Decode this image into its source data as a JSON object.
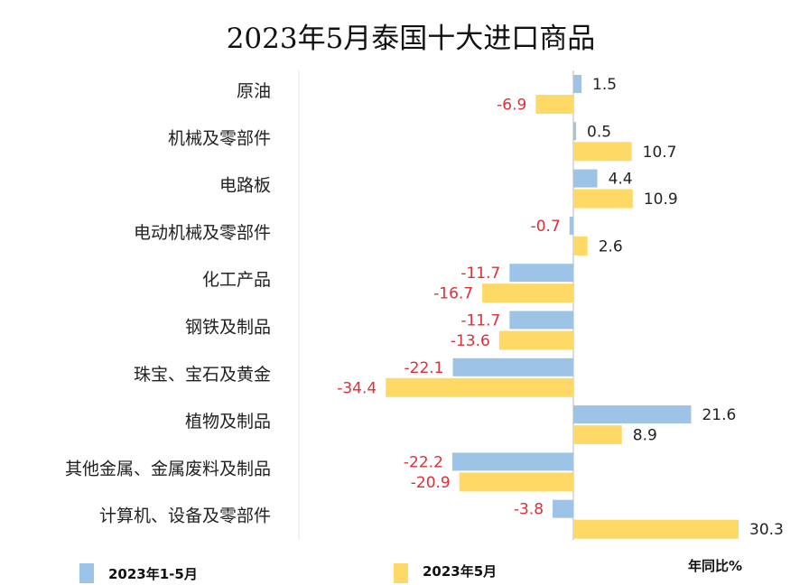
{
  "chart_data": {
    "type": "bar",
    "orientation": "horizontal",
    "title": "2023年5月泰国十大进口商品",
    "categories": [
      "原油",
      "机械及零部件",
      "电路板",
      "电动机械及零部件",
      "化工产品",
      "钢铁及制品",
      "珠宝、宝石及黄金",
      "植物及制品",
      "其他金属、金属废料及制品",
      "计算机、设备及零部件"
    ],
    "series": [
      {
        "name": "2023年1-5月",
        "color": "#9dc3e6",
        "values": [
          1.5,
          0.5,
          4.4,
          -0.7,
          -11.7,
          -11.7,
          -22.1,
          21.6,
          -22.2,
          -3.8
        ]
      },
      {
        "name": "2023年5月",
        "color": "#ffd966",
        "values": [
          -6.9,
          10.7,
          10.9,
          2.6,
          -16.7,
          -13.6,
          -34.4,
          8.9,
          -20.9,
          30.3
        ]
      }
    ],
    "unit_label": "年同比%",
    "xlim": [
      -50,
      35
    ],
    "grid": false,
    "legend_placement": "bottom",
    "negative_label_color": "#d9303a",
    "positive_label_color": "#222222"
  }
}
